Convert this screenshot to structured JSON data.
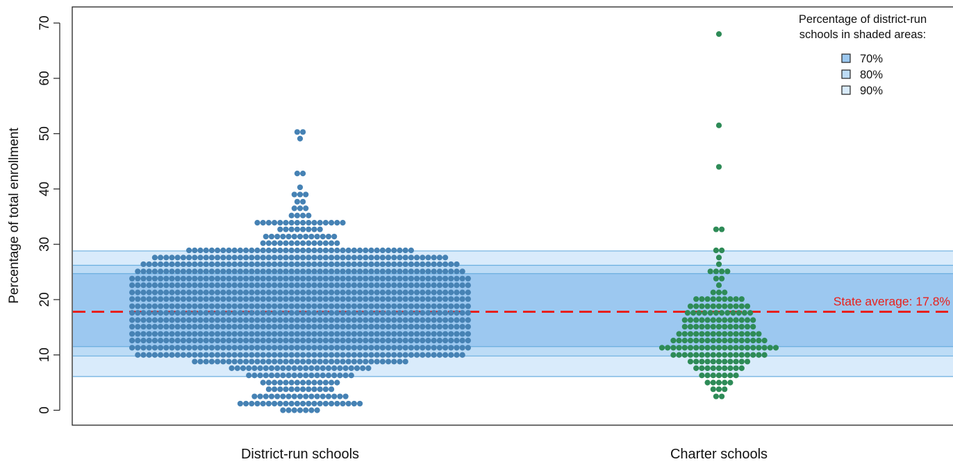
{
  "chart_data": {
    "type": "scatter",
    "subtype": "beeswarm",
    "title": "",
    "xlabel": "",
    "ylabel": "Percentage of total enrollment",
    "ylim": [
      -3,
      72.5
    ],
    "yticks": [
      0,
      10,
      20,
      30,
      40,
      50,
      60,
      70
    ],
    "grid": false,
    "categories": [
      "District-run schools",
      "Charter schools"
    ],
    "series": [
      {
        "category": "District-run schools",
        "color": "#4682b4",
        "distribution": [
          {
            "y": 0,
            "count": 7
          },
          {
            "y": 1.2,
            "count": 22
          },
          {
            "y": 2.5,
            "count": 17
          },
          {
            "y": 3.8,
            "count": 12
          },
          {
            "y": 5.0,
            "count": 14
          },
          {
            "y": 6.3,
            "count": 19
          },
          {
            "y": 7.6,
            "count": 25
          },
          {
            "y": 8.8,
            "count": 38
          },
          {
            "y": 10.0,
            "count": 58
          },
          {
            "y": 11.3,
            "count": 60
          },
          {
            "y": 12.6,
            "count": 60
          },
          {
            "y": 13.8,
            "count": 60
          },
          {
            "y": 15.1,
            "count": 60
          },
          {
            "y": 16.3,
            "count": 60
          },
          {
            "y": 17.6,
            "count": 60
          },
          {
            "y": 18.8,
            "count": 60
          },
          {
            "y": 20.1,
            "count": 60
          },
          {
            "y": 21.3,
            "count": 60
          },
          {
            "y": 22.6,
            "count": 60
          },
          {
            "y": 23.8,
            "count": 60
          },
          {
            "y": 25.1,
            "count": 58
          },
          {
            "y": 26.4,
            "count": 56
          },
          {
            "y": 27.6,
            "count": 52
          },
          {
            "y": 28.9,
            "count": 40
          },
          {
            "y": 30.2,
            "count": 14
          },
          {
            "y": 31.4,
            "count": 13
          },
          {
            "y": 32.7,
            "count": 8
          },
          {
            "y": 33.9,
            "count": 16
          },
          {
            "y": 35.2,
            "count": 4
          },
          {
            "y": 36.5,
            "count": 3
          },
          {
            "y": 37.7,
            "count": 2
          },
          {
            "y": 39.0,
            "count": 3
          },
          {
            "y": 40.3,
            "count": 1
          },
          {
            "y": 42.8,
            "count": 2
          },
          {
            "y": 49.1,
            "count": 1
          },
          {
            "y": 50.3,
            "count": 2
          }
        ]
      },
      {
        "category": "Charter schools",
        "color": "#2e8b57",
        "distribution": [
          {
            "y": 2.5,
            "count": 2
          },
          {
            "y": 3.8,
            "count": 3
          },
          {
            "y": 5.0,
            "count": 5
          },
          {
            "y": 6.3,
            "count": 7
          },
          {
            "y": 7.6,
            "count": 9
          },
          {
            "y": 8.8,
            "count": 11
          },
          {
            "y": 10.0,
            "count": 17
          },
          {
            "y": 11.3,
            "count": 21
          },
          {
            "y": 12.6,
            "count": 17
          },
          {
            "y": 13.8,
            "count": 15
          },
          {
            "y": 15.1,
            "count": 13
          },
          {
            "y": 16.3,
            "count": 13
          },
          {
            "y": 17.6,
            "count": 12
          },
          {
            "y": 18.8,
            "count": 11
          },
          {
            "y": 20.1,
            "count": 9
          },
          {
            "y": 21.3,
            "count": 3
          },
          {
            "y": 22.6,
            "count": 1
          },
          {
            "y": 23.8,
            "count": 2
          },
          {
            "y": 25.1,
            "count": 4
          },
          {
            "y": 26.4,
            "count": 1
          },
          {
            "y": 27.6,
            "count": 1
          },
          {
            "y": 28.9,
            "count": 2
          },
          {
            "y": 32.7,
            "count": 2
          },
          {
            "y": 44.0,
            "count": 1
          },
          {
            "y": 51.5,
            "count": 1
          },
          {
            "y": 68.0,
            "count": 1
          }
        ]
      }
    ],
    "bands": [
      {
        "label": "70%",
        "low": 11.5,
        "high": 24.7,
        "color": "#9cc8f0"
      },
      {
        "label": "80%",
        "low": 9.8,
        "high": 26.2,
        "color": "#bddcf6"
      },
      {
        "label": "90%",
        "low": 6.1,
        "high": 28.8,
        "color": "#d9ebfb"
      }
    ],
    "reference_line": {
      "y": 17.8,
      "label": "State average: 17.8%",
      "color": "#e8201c"
    },
    "legend": {
      "title_lines": [
        "Percentage of district-run",
        "schools in shaded areas:"
      ],
      "placement": "top-right",
      "entries": [
        "70%",
        "80%",
        "90%"
      ]
    }
  }
}
